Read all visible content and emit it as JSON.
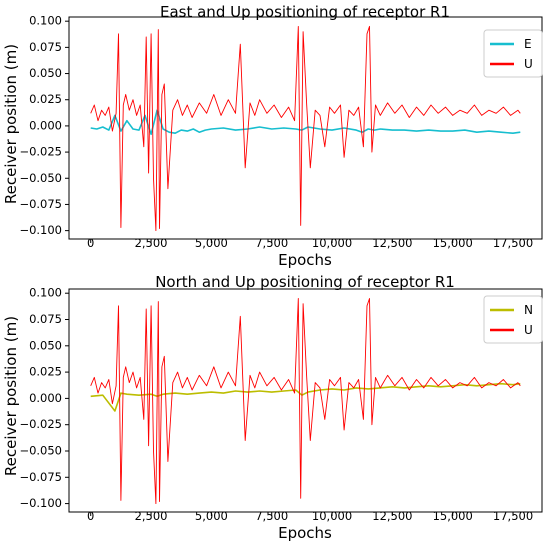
{
  "chart_data": [
    {
      "type": "line",
      "title": "East and Up positioning of receptor R1",
      "xlabel": "Epochs",
      "ylabel": "Receiver position (m)",
      "xlim": [
        -900,
        18700
      ],
      "ylim": [
        -0.108,
        0.104
      ],
      "x_ticks": [
        0,
        2500,
        5000,
        7500,
        10000,
        12500,
        15000,
        17500
      ],
      "x_tick_labels": [
        "0",
        "2,500",
        "5,000",
        "7,500",
        "10,000",
        "12,500",
        "15,000",
        "17,500"
      ],
      "y_ticks": [
        0.1,
        0.075,
        0.05,
        0.025,
        0.0,
        -0.025,
        -0.05,
        -0.075,
        -0.1
      ],
      "y_tick_labels": [
        "0.100",
        "0.075",
        "0.050",
        "0.025",
        "0.000",
        "−0.025",
        "−0.050",
        "−0.075",
        "−0.100"
      ],
      "legend_position": "top-right",
      "grid": false,
      "series": [
        {
          "name": "E",
          "color": "#17becf",
          "x": [
            0,
            250,
            500,
            750,
            1000,
            1250,
            1500,
            1750,
            2000,
            2250,
            2500,
            2750,
            3000,
            3250,
            3500,
            3750,
            4000,
            4250,
            4500,
            4750,
            5000,
            5500,
            6000,
            6500,
            7000,
            7500,
            8000,
            8500,
            8750,
            9000,
            9500,
            10000,
            10500,
            11000,
            11250,
            11500,
            11750,
            12000,
            12500,
            13000,
            13500,
            14000,
            14500,
            15000,
            15500,
            16000,
            16500,
            17000,
            17500,
            17800
          ],
          "y": [
            -0.002,
            -0.003,
            -0.001,
            -0.004,
            0.01,
            -0.005,
            0.005,
            -0.003,
            -0.004,
            0.01,
            -0.008,
            0.015,
            -0.003,
            -0.006,
            -0.007,
            -0.004,
            -0.005,
            -0.003,
            -0.006,
            -0.004,
            -0.003,
            -0.002,
            -0.004,
            -0.003,
            -0.001,
            -0.003,
            -0.002,
            -0.003,
            -0.004,
            -0.001,
            -0.003,
            -0.004,
            -0.002,
            -0.004,
            -0.006,
            -0.003,
            -0.004,
            -0.003,
            -0.004,
            -0.004,
            -0.005,
            -0.004,
            -0.005,
            -0.005,
            -0.004,
            -0.006,
            -0.005,
            -0.006,
            -0.007,
            -0.006
          ]
        },
        {
          "name": "U",
          "color": "#ff0000",
          "x": [
            0,
            150,
            300,
            450,
            600,
            750,
            900,
            1050,
            1150,
            1250,
            1350,
            1450,
            1600,
            1750,
            1900,
            2050,
            2200,
            2300,
            2400,
            2500,
            2600,
            2700,
            2800,
            2850,
            2950,
            3050,
            3200,
            3400,
            3600,
            3800,
            4000,
            4200,
            4500,
            4800,
            5100,
            5400,
            5700,
            6000,
            6200,
            6400,
            6600,
            6800,
            7000,
            7300,
            7600,
            7900,
            8200,
            8450,
            8600,
            8700,
            8800,
            8950,
            9100,
            9300,
            9500,
            9700,
            9900,
            10100,
            10350,
            10500,
            10700,
            10900,
            11100,
            11300,
            11450,
            11550,
            11650,
            11800,
            12000,
            12300,
            12600,
            12900,
            13200,
            13500,
            13800,
            14100,
            14400,
            14700,
            15000,
            15300,
            15600,
            15900,
            16200,
            16500,
            16800,
            17100,
            17400,
            17700,
            17800
          ],
          "y": [
            0.012,
            0.02,
            0.005,
            0.015,
            0.01,
            0.018,
            -0.005,
            0.012,
            0.088,
            -0.097,
            0.02,
            0.03,
            0.015,
            0.025,
            0.01,
            0.02,
            -0.02,
            0.085,
            -0.045,
            0.088,
            -0.05,
            -0.1,
            0.092,
            -0.098,
            0.03,
            0.04,
            -0.06,
            0.015,
            0.025,
            0.01,
            0.02,
            0.008,
            0.022,
            0.012,
            0.03,
            0.01,
            0.025,
            0.012,
            0.078,
            -0.04,
            0.022,
            0.01,
            0.025,
            0.012,
            0.02,
            0.008,
            0.018,
            0.005,
            0.095,
            -0.095,
            0.09,
            0.02,
            -0.04,
            0.015,
            0.01,
            -0.02,
            0.018,
            0.012,
            0.02,
            -0.03,
            0.015,
            0.01,
            0.018,
            -0.02,
            0.088,
            0.095,
            -0.025,
            0.02,
            0.01,
            0.022,
            0.012,
            0.02,
            0.008,
            0.018,
            0.01,
            0.02,
            0.012,
            0.018,
            0.01,
            0.015,
            0.012,
            0.02,
            0.01,
            0.015,
            0.012,
            0.018,
            0.01,
            0.015,
            0.012
          ]
        }
      ]
    },
    {
      "type": "line",
      "title": "North and Up positioning of receptor R1",
      "xlabel": "Epochs",
      "ylabel": "Receiver position (m)",
      "xlim": [
        -900,
        18700
      ],
      "ylim": [
        -0.108,
        0.104
      ],
      "x_ticks": [
        0,
        2500,
        5000,
        7500,
        10000,
        12500,
        15000,
        17500
      ],
      "x_tick_labels": [
        "0",
        "2,500",
        "5,000",
        "7,500",
        "10,000",
        "12,500",
        "15,000",
        "17,500"
      ],
      "y_ticks": [
        0.1,
        0.075,
        0.05,
        0.025,
        0.0,
        -0.025,
        -0.05,
        -0.075,
        -0.1
      ],
      "y_tick_labels": [
        "0.100",
        "0.075",
        "0.050",
        "0.025",
        "0.000",
        "−0.025",
        "−0.050",
        "−0.075",
        "−0.100"
      ],
      "legend_position": "top-right",
      "grid": false,
      "series": [
        {
          "name": "N",
          "color": "#bcbd00",
          "x": [
            0,
            500,
            1000,
            1250,
            1500,
            2000,
            2500,
            2750,
            3000,
            3500,
            4000,
            4500,
            5000,
            5500,
            6000,
            6500,
            7000,
            7500,
            8000,
            8500,
            8750,
            9000,
            9500,
            10000,
            10500,
            11000,
            11500,
            12000,
            12500,
            13000,
            13500,
            14000,
            14500,
            15000,
            15500,
            16000,
            16500,
            17000,
            17500,
            17800
          ],
          "y": [
            0.002,
            0.003,
            -0.012,
            0.005,
            0.004,
            0.003,
            0.004,
            0.002,
            0.004,
            0.005,
            0.004,
            0.005,
            0.006,
            0.005,
            0.007,
            0.006,
            0.007,
            0.006,
            0.007,
            0.008,
            0.003,
            0.006,
            0.008,
            0.009,
            0.008,
            0.01,
            0.009,
            0.01,
            0.011,
            0.01,
            0.011,
            0.012,
            0.011,
            0.012,
            0.013,
            0.012,
            0.013,
            0.014,
            0.013,
            0.014
          ]
        },
        {
          "name": "U",
          "color": "#ff0000",
          "x": [
            0,
            150,
            300,
            450,
            600,
            750,
            900,
            1050,
            1150,
            1250,
            1350,
            1450,
            1600,
            1750,
            1900,
            2050,
            2200,
            2300,
            2400,
            2500,
            2600,
            2700,
            2800,
            2850,
            2950,
            3050,
            3200,
            3400,
            3600,
            3800,
            4000,
            4200,
            4500,
            4800,
            5100,
            5400,
            5700,
            6000,
            6200,
            6400,
            6600,
            6800,
            7000,
            7300,
            7600,
            7900,
            8200,
            8450,
            8600,
            8700,
            8800,
            8950,
            9100,
            9300,
            9500,
            9700,
            9900,
            10100,
            10350,
            10500,
            10700,
            10900,
            11100,
            11300,
            11450,
            11550,
            11650,
            11800,
            12000,
            12300,
            12600,
            12900,
            13200,
            13500,
            13800,
            14100,
            14400,
            14700,
            15000,
            15300,
            15600,
            15900,
            16200,
            16500,
            16800,
            17100,
            17400,
            17700,
            17800
          ],
          "y": [
            0.012,
            0.02,
            0.005,
            0.015,
            0.01,
            0.018,
            -0.005,
            0.012,
            0.088,
            -0.097,
            0.02,
            0.03,
            0.015,
            0.025,
            0.01,
            0.02,
            -0.02,
            0.085,
            -0.045,
            0.088,
            -0.05,
            -0.1,
            0.092,
            -0.098,
            0.03,
            0.04,
            -0.06,
            0.015,
            0.025,
            0.01,
            0.02,
            0.008,
            0.022,
            0.012,
            0.03,
            0.01,
            0.025,
            0.012,
            0.078,
            -0.04,
            0.022,
            0.01,
            0.025,
            0.012,
            0.02,
            0.008,
            0.018,
            0.005,
            0.095,
            -0.095,
            0.09,
            0.02,
            -0.04,
            0.015,
            0.01,
            -0.02,
            0.018,
            0.012,
            0.02,
            -0.03,
            0.015,
            0.01,
            0.018,
            -0.02,
            0.088,
            0.095,
            -0.025,
            0.02,
            0.01,
            0.022,
            0.012,
            0.02,
            0.008,
            0.018,
            0.01,
            0.02,
            0.012,
            0.018,
            0.01,
            0.015,
            0.012,
            0.02,
            0.01,
            0.015,
            0.012,
            0.018,
            0.01,
            0.015,
            0.012
          ]
        }
      ]
    }
  ]
}
